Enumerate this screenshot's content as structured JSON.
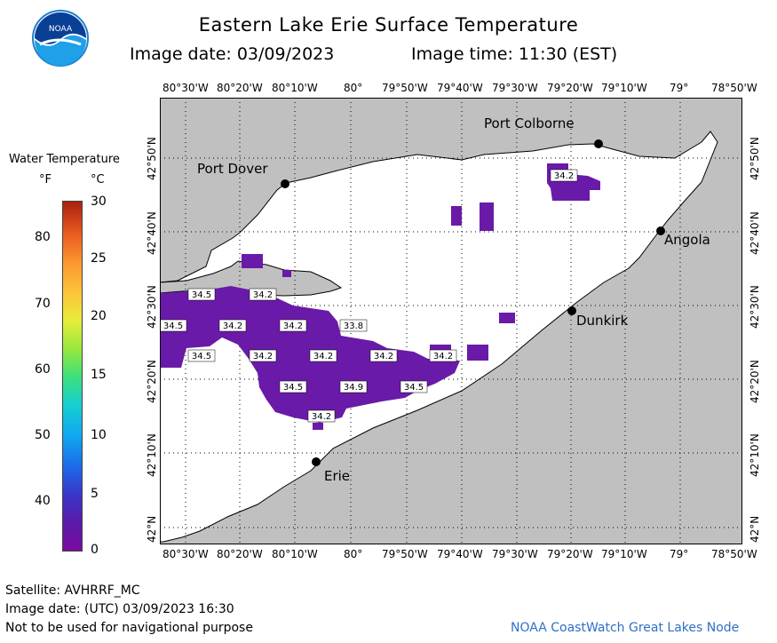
{
  "header": {
    "title": "Eastern Lake Erie Surface Temperature",
    "image_date": "Image date: 03/09/2023",
    "image_time": "Image time: 11:30 (EST)"
  },
  "logo": {
    "text": "NOAA"
  },
  "legend": {
    "title": "Water Temperature",
    "unit_f": "°F",
    "unit_c": "°C",
    "ticks_f": [
      "80",
      "70",
      "60",
      "50",
      "40"
    ],
    "ticks_c": [
      "30",
      "25",
      "20",
      "15",
      "10",
      "5",
      "0"
    ],
    "colors": {
      "low": "#7a0aa0",
      "high": "#a8200e"
    }
  },
  "map": {
    "lon_labels": [
      "80°30'W",
      "80°20'W",
      "80°10'W",
      "80°",
      "79°50'W",
      "79°40'W",
      "79°30'W",
      "79°20'W",
      "79°10'W",
      "79°",
      "78°50'W"
    ],
    "lat_labels": [
      "42°50'N",
      "42°40'N",
      "42°30'N",
      "42°20'N",
      "42°10'N",
      "42°N"
    ],
    "places": {
      "port_colborne": "Port Colborne",
      "port_dover": "Port Dover",
      "angola": "Angola",
      "dunkirk": "Dunkirk",
      "erie": "Erie"
    },
    "temp_labels": [
      "34.2",
      "34.5",
      "34.2",
      "34.5",
      "34.2",
      "34.2",
      "33.8",
      "34.5",
      "34.2",
      "34.2",
      "34.2",
      "34.2",
      "34.5",
      "34.9",
      "34.5",
      "34.2"
    ],
    "colors": {
      "land": "#c0c0c0",
      "water": "#ffffff",
      "cold_water": "#6a1aa8"
    }
  },
  "footer": {
    "satellite": "Satellite: AVHRRF_MC",
    "utc_date": "Image date: (UTC) 03/09/2023  16:30",
    "disclaimer": "Not to be used for navigational purpose",
    "credit": "NOAA CoastWatch Great Lakes Node"
  }
}
